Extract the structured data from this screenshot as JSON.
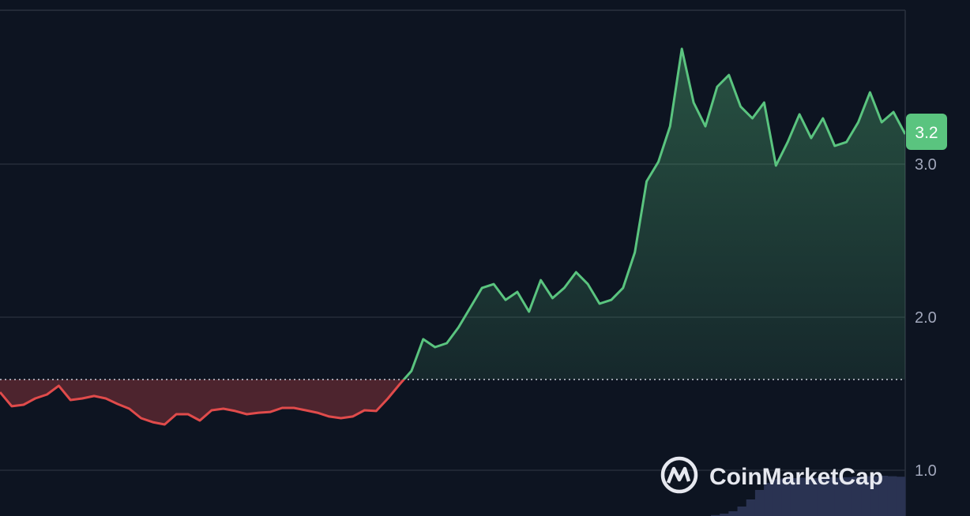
{
  "chart_data": {
    "type": "area",
    "title": "",
    "xlabel": "",
    "ylabel": "",
    "ylim": [
      0.7,
      3.99
    ],
    "yticks": [
      "1.0",
      "2.0",
      "3.0"
    ],
    "ytick_values": [
      1.0,
      2.0,
      3.0
    ],
    "grid": "horizontal",
    "baseline": 1.593,
    "current_value_label": "3.2",
    "colors": {
      "background": "#0d1421",
      "up": "#5ac47f",
      "down": "#e04b4b",
      "volume": "#2a3352",
      "grid": "#2b313f"
    },
    "series": [
      {
        "values": [
          1.51,
          1.418,
          1.428,
          1.469,
          1.495,
          1.552,
          1.459,
          1.469,
          1.485,
          1.469,
          1.433,
          1.402,
          1.34,
          1.314,
          1.299,
          1.366,
          1.366,
          1.325,
          1.392,
          1.402,
          1.387,
          1.366,
          1.376,
          1.381,
          1.407,
          1.407,
          1.392,
          1.376,
          1.351,
          1.34,
          1.351,
          1.392,
          1.387,
          1.469,
          1.562,
          1.649,
          1.856,
          1.804,
          1.83,
          1.933,
          2.062,
          2.191,
          2.216,
          2.113,
          2.165,
          2.036,
          2.242,
          2.124,
          2.191,
          2.294,
          2.216,
          2.088,
          2.113,
          2.191,
          2.423,
          2.887,
          3.015,
          3.247,
          3.753,
          3.402,
          3.247,
          3.505,
          3.582,
          3.376,
          3.299,
          3.402,
          2.99,
          3.144,
          3.325,
          3.17,
          3.299,
          3.119,
          3.144,
          3.273,
          3.469,
          3.273,
          3.34,
          3.196
        ]
      }
    ],
    "volume_relative": [
      0.02,
      0.05,
      0.1,
      0.2,
      0.35,
      0.55,
      0.7,
      0.78,
      0.8,
      0.8,
      0.81,
      0.8,
      0.81,
      0.82,
      0.81,
      0.82,
      0.83,
      0.84,
      0.84,
      0.85,
      0.84,
      0.83
    ]
  },
  "watermark": {
    "text": "CoinMarketCap"
  }
}
